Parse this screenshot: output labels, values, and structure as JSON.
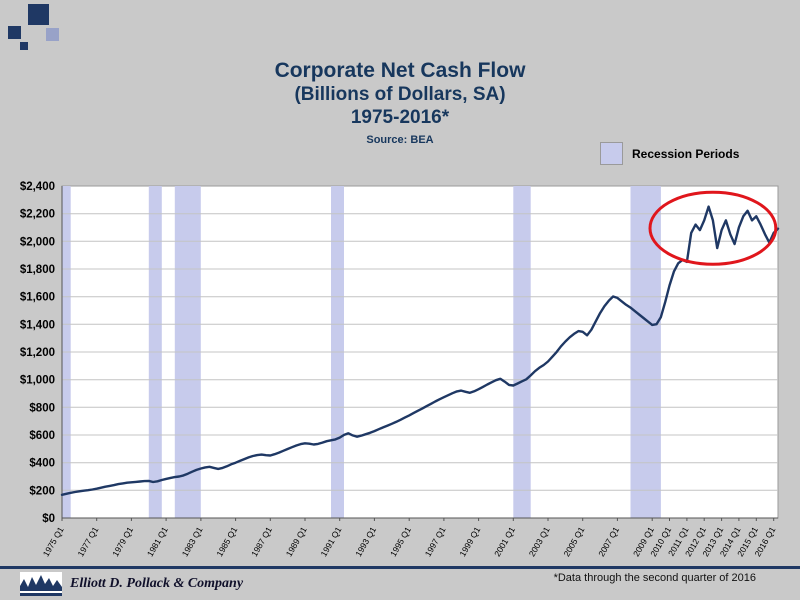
{
  "slide": {
    "title_lines": [
      "Corporate Net Cash Flow",
      "(Billions of Dollars, SA)",
      "1975-2016*"
    ],
    "source": "Source: BEA",
    "legend": {
      "label": "Recession Periods",
      "swatch_color": "#c7cbec"
    },
    "footnote": "*Data through the second quarter of 2016",
    "footer_company": "Elliott D. Pollack & Company",
    "colors": {
      "background": "#c9c9c9",
      "title": "#17375d",
      "line": "#1f3864",
      "recession_band": "#c7cbec",
      "highlight_ellipse": "#e0161c",
      "footer_rule": "#1f3864"
    }
  },
  "chart_data": {
    "type": "line",
    "title": "Corporate Net Cash Flow (Billions of Dollars, SA) 1975-2016*",
    "series_name": "Corporate Net Cash Flow ($B, SA)",
    "x_unit": "quarter",
    "x_start": "1975 Q1",
    "x_end": "2016 Q2",
    "ylim": [
      0,
      2400
    ],
    "ytick_step": 200,
    "ytick_prefix": "$",
    "grid": true,
    "legend": "Recession Periods",
    "line_color": "#1f3864",
    "band_color": "#c7cbec",
    "ellipse_color": "#e0161c",
    "values": [
      168,
      175,
      182,
      188,
      193,
      197,
      201,
      206,
      212,
      219,
      226,
      232,
      238,
      245,
      250,
      255,
      258,
      261,
      264,
      267,
      268,
      260,
      265,
      275,
      283,
      290,
      296,
      300,
      308,
      320,
      335,
      348,
      358,
      366,
      370,
      362,
      355,
      362,
      374,
      388,
      400,
      413,
      426,
      438,
      448,
      455,
      458,
      454,
      452,
      461,
      473,
      486,
      499,
      512,
      524,
      534,
      540,
      537,
      531,
      536,
      545,
      555,
      562,
      568,
      581,
      601,
      612,
      597,
      588,
      596,
      606,
      616,
      628,
      642,
      655,
      668,
      681,
      695,
      710,
      726,
      742,
      758,
      775,
      791,
      808,
      825,
      842,
      858,
      873,
      888,
      902,
      915,
      921,
      912,
      905,
      916,
      931,
      948,
      965,
      981,
      996,
      1006,
      986,
      962,
      958,
      972,
      988,
      1003,
      1031,
      1061,
      1086,
      1106,
      1131,
      1166,
      1201,
      1241,
      1276,
      1306,
      1331,
      1351,
      1346,
      1321,
      1361,
      1421,
      1481,
      1531,
      1571,
      1601,
      1591,
      1566,
      1541,
      1521,
      1496,
      1471,
      1446,
      1421,
      1396,
      1401,
      1451,
      1561,
      1681,
      1781,
      1841,
      1866,
      1851,
      2061,
      2121,
      2081,
      2151,
      2251,
      2151,
      1951,
      2081,
      2151,
      2051,
      1981,
      2101,
      2181,
      2221,
      2151,
      2181,
      2121,
      2051,
      1991,
      2061,
      2091
    ],
    "x_ticks": [
      {
        "i": 0,
        "label": "1975 Q1"
      },
      {
        "i": 8,
        "label": "1977 Q1"
      },
      {
        "i": 16,
        "label": "1979 Q1"
      },
      {
        "i": 24,
        "label": "1981 Q1"
      },
      {
        "i": 32,
        "label": "1983 Q1"
      },
      {
        "i": 40,
        "label": "1985 Q1"
      },
      {
        "i": 48,
        "label": "1987 Q1"
      },
      {
        "i": 56,
        "label": "1989 Q1"
      },
      {
        "i": 64,
        "label": "1991 Q1"
      },
      {
        "i": 72,
        "label": "1993 Q1"
      },
      {
        "i": 80,
        "label": "1995 Q1"
      },
      {
        "i": 88,
        "label": "1997 Q1"
      },
      {
        "i": 96,
        "label": "1999 Q1"
      },
      {
        "i": 104,
        "label": "2001 Q1"
      },
      {
        "i": 112,
        "label": "2003 Q1"
      },
      {
        "i": 120,
        "label": "2005 Q1"
      },
      {
        "i": 128,
        "label": "2007 Q1"
      },
      {
        "i": 136,
        "label": "2009 Q1"
      },
      {
        "i": 140,
        "label": "2010 Q1"
      },
      {
        "i": 144,
        "label": "2011 Q1"
      },
      {
        "i": 148,
        "label": "2012 Q1"
      },
      {
        "i": 152,
        "label": "2013 Q1"
      },
      {
        "i": 156,
        "label": "2014 Q1"
      },
      {
        "i": 160,
        "label": "2015 Q1"
      },
      {
        "i": 164,
        "label": "2016 Q1"
      }
    ],
    "recession_bands": [
      [
        0,
        2
      ],
      [
        20,
        23
      ],
      [
        26,
        32
      ],
      [
        62,
        65
      ],
      [
        104,
        108
      ],
      [
        131,
        138
      ]
    ],
    "annotation_ellipse": {
      "cx_quarter": 150,
      "cy_value": 2095,
      "rx_quarters": 14.5,
      "ry_value": 260
    }
  }
}
